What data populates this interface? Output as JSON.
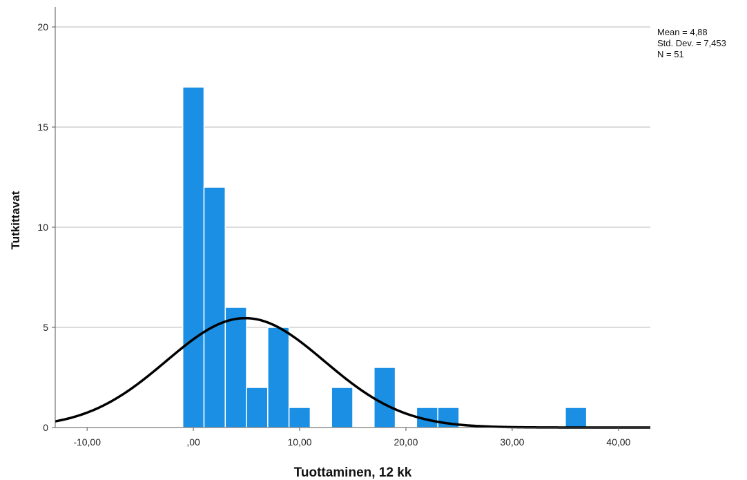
{
  "chart_data": {
    "type": "bar",
    "subtype": "histogram",
    "title": "",
    "xlabel": "Tuottaminen, 12 kk",
    "ylabel": "Tutkittavat",
    "xlim": [
      -13,
      43
    ],
    "ylim": [
      0,
      21
    ],
    "x_ticks": [
      -10,
      0,
      10,
      20,
      30,
      40
    ],
    "x_tick_labels": [
      "-10,00",
      ",00",
      "10,00",
      "20,00",
      "30,00",
      "40,00"
    ],
    "y_ticks": [
      0,
      5,
      10,
      15,
      20
    ],
    "y_tick_labels": [
      "0",
      "5",
      "10",
      "15",
      "20"
    ],
    "grid": "horizontal",
    "bar_color": "#1a8fe3",
    "bins": [
      {
        "x0": -1,
        "x1": 1,
        "count": 17
      },
      {
        "x0": 1,
        "x1": 3,
        "count": 12
      },
      {
        "x0": 3,
        "x1": 5,
        "count": 6
      },
      {
        "x0": 5,
        "x1": 7,
        "count": 2
      },
      {
        "x0": 7,
        "x1": 9,
        "count": 5
      },
      {
        "x0": 9,
        "x1": 11,
        "count": 1
      },
      {
        "x0": 13,
        "x1": 15,
        "count": 2
      },
      {
        "x0": 17,
        "x1": 19,
        "count": 3
      },
      {
        "x0": 21,
        "x1": 23,
        "count": 1
      },
      {
        "x0": 23,
        "x1": 25,
        "count": 1
      },
      {
        "x0": 35,
        "x1": 37,
        "count": 1
      }
    ],
    "normal_curve": {
      "mean": 4.88,
      "sd": 7.453,
      "n": 51,
      "bin_width": 2,
      "color": "#000000"
    },
    "stats_lines": [
      "Mean = 4,88",
      "Std. Dev. = 7,453",
      "N = 51"
    ],
    "legend_placement": "top-right"
  }
}
